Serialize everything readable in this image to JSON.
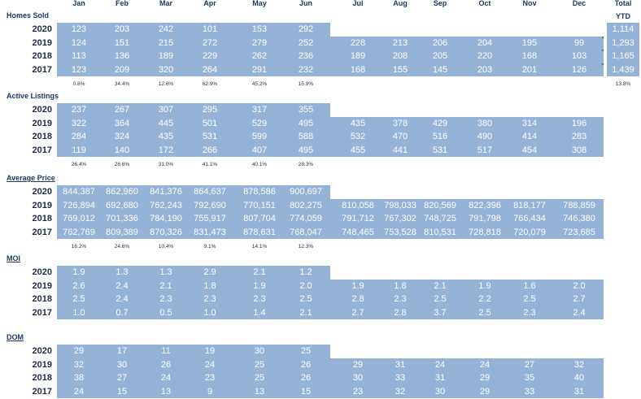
{
  "months": [
    "Jan",
    "Feb",
    "Mar",
    "Apr",
    "May",
    "Jun",
    "Jul",
    "Aug",
    "Sep",
    "Oct",
    "Nov",
    "Dec"
  ],
  "total_label": "Total",
  "ytd_label": "YTD",
  "sections": [
    {
      "title": "Homes Sold",
      "underline": false,
      "rows": [
        {
          "year": "2020",
          "values": [
            "123",
            "203",
            "242",
            "101",
            "153",
            "292",
            "",
            "",
            "",
            "",
            "",
            ""
          ],
          "ytd": "1,114"
        },
        {
          "year": "2019",
          "values": [
            "124",
            "151",
            "215",
            "272",
            "279",
            "252",
            "228",
            "213",
            "206",
            "204",
            "195",
            "99"
          ],
          "ytd": "1,293"
        },
        {
          "year": "2018",
          "values": [
            "113",
            "136",
            "189",
            "229",
            "262",
            "236",
            "189",
            "208",
            "205",
            "220",
            "168",
            "103"
          ],
          "ytd": "1,165"
        },
        {
          "year": "2017",
          "values": [
            "123",
            "209",
            "320",
            "264",
            "291",
            "232",
            "168",
            "155",
            "145",
            "203",
            "201",
            "126"
          ],
          "ytd": "1,439"
        }
      ],
      "pcts": [
        "0.8%",
        "34.4%",
        "12.6%",
        "62.9%",
        "45.2%",
        "15.9%"
      ],
      "pct_ytd": "13.8%"
    },
    {
      "title": "Active Listings",
      "underline": false,
      "rows": [
        {
          "year": "2020",
          "values": [
            "237",
            "267",
            "307",
            "295",
            "317",
            "355",
            "",
            "",
            "",
            "",
            "",
            ""
          ]
        },
        {
          "year": "2019",
          "values": [
            "322",
            "364",
            "445",
            "501",
            "529",
            "495",
            "435",
            "378",
            "429",
            "380",
            "314",
            "196"
          ]
        },
        {
          "year": "2018",
          "values": [
            "284",
            "324",
            "435",
            "531",
            "599",
            "588",
            "532",
            "470",
            "516",
            "490",
            "414",
            "283"
          ]
        },
        {
          "year": "2017",
          "values": [
            "119",
            "140",
            "172",
            "266",
            "407",
            "495",
            "455",
            "441",
            "531",
            "517",
            "454",
            "308"
          ]
        }
      ],
      "pcts": [
        "26.4%",
        "26.6%",
        "31.0%",
        "41.1%",
        "40.1%",
        "28.3%"
      ]
    },
    {
      "title": "Average Price",
      "underline": true,
      "rows": [
        {
          "year": "2020",
          "values": [
            "844,387",
            "862,960",
            "841,376",
            "864,637",
            "878,586",
            "900,697",
            "",
            "",
            "",
            "",
            "",
            ""
          ]
        },
        {
          "year": "2019",
          "values": [
            "726,894",
            "692,680",
            "762,243",
            "792,690",
            "770,151",
            "802,275",
            "810,058",
            "798,033",
            "820,569",
            "822,396",
            "818,177",
            "788,859"
          ]
        },
        {
          "year": "2018",
          "values": [
            "769,012",
            "701,336",
            "784,190",
            "755,917",
            "807,704",
            "774,059",
            "791,712",
            "767,302",
            "748,725",
            "791,798",
            "766,434",
            "746,380"
          ]
        },
        {
          "year": "2017",
          "values": [
            "762,769",
            "809,389",
            "870,326",
            "831,473",
            "878,631",
            "768,047",
            "748,465",
            "753,528",
            "810,531",
            "728,818",
            "720,079",
            "723,685"
          ]
        }
      ],
      "pcts": [
        "16.2%",
        "24.6%",
        "10.4%",
        "9.1%",
        "14.1%",
        "12.3%"
      ]
    },
    {
      "title": "MOI",
      "underline": true,
      "rows": [
        {
          "year": "2020",
          "values": [
            "1.9",
            "1.3",
            "1.3",
            "2.9",
            "2.1",
            "1.2",
            "",
            "",
            "",
            "",
            "",
            ""
          ]
        },
        {
          "year": "2019",
          "values": [
            "2.6",
            "2.4",
            "2.1",
            "1.8",
            "1.9",
            "2.0",
            "1.9",
            "1.8",
            "2.1",
            "1.9",
            "1.6",
            "2.0"
          ]
        },
        {
          "year": "2018",
          "values": [
            "2.5",
            "2.4",
            "2.3",
            "2.3",
            "2.3",
            "2.5",
            "2.8",
            "2.3",
            "2.5",
            "2.2",
            "2.5",
            "2.7"
          ]
        },
        {
          "year": "2017",
          "values": [
            "1.0",
            "0.7",
            "0.5",
            "1.0",
            "1.4",
            "2.1",
            "2.7",
            "2.8",
            "3.7",
            "2.5",
            "2.3",
            "2.4"
          ]
        }
      ]
    },
    {
      "title": "DOM",
      "underline": true,
      "rows": [
        {
          "year": "2020",
          "values": [
            "29",
            "17",
            "11",
            "19",
            "30",
            "25",
            "",
            "",
            "",
            "",
            "",
            ""
          ]
        },
        {
          "year": "2019",
          "values": [
            "32",
            "30",
            "26",
            "24",
            "25",
            "26",
            "29",
            "31",
            "24",
            "24",
            "27",
            "32"
          ]
        },
        {
          "year": "2018",
          "values": [
            "38",
            "27",
            "24",
            "23",
            "25",
            "26",
            "30",
            "33",
            "31",
            "29",
            "35",
            "40"
          ]
        },
        {
          "year": "2017",
          "values": [
            "24",
            "15",
            "13",
            "9",
            "13",
            "15",
            "23",
            "32",
            "30",
            "29",
            "33",
            "31"
          ]
        }
      ]
    }
  ],
  "colors": {
    "band": "#95b3d7",
    "header": "#1f3864",
    "marker": "#2e8b3a"
  }
}
